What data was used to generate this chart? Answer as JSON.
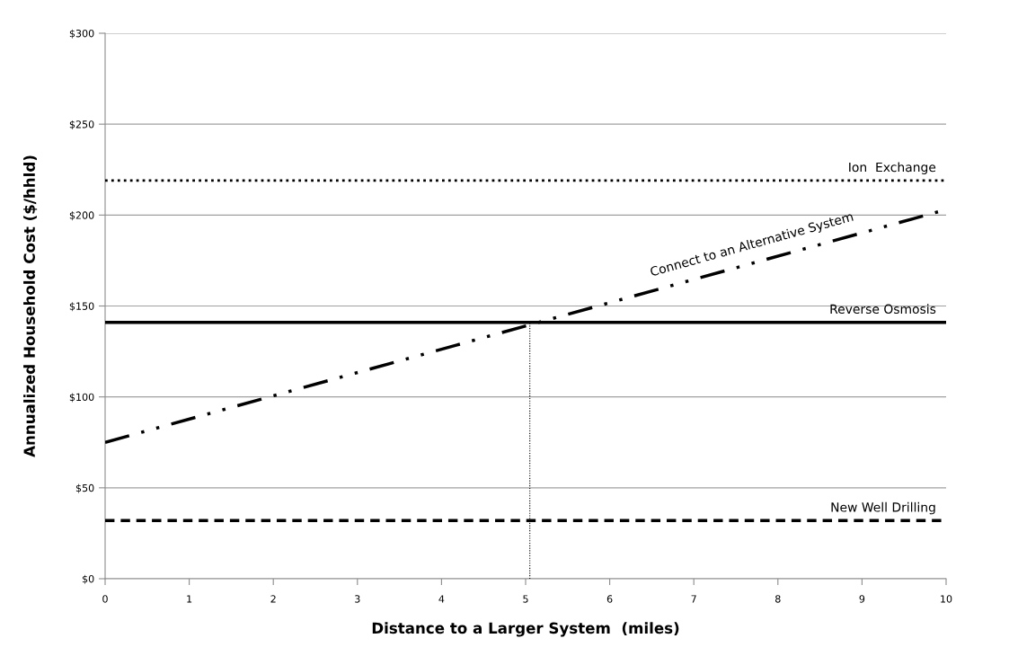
{
  "chart_data": {
    "type": "line",
    "xlabel": "Distance to a Larger System  (miles)",
    "ylabel": "Annualized Household Cost ($/hhld)",
    "xlim": [
      0,
      10
    ],
    "xticks": [
      0,
      1,
      2,
      3,
      4,
      5,
      6,
      7,
      8,
      9,
      10
    ],
    "ylim": [
      0,
      300
    ],
    "yticks": [
      {
        "value": 0,
        "label": "$0"
      },
      {
        "value": 50,
        "label": "$50"
      },
      {
        "value": 100,
        "label": "$100"
      },
      {
        "value": 150,
        "label": "$150"
      },
      {
        "value": 200,
        "label": "$200"
      },
      {
        "value": 250,
        "label": "$250"
      },
      {
        "value": 300,
        "label": "$300"
      }
    ],
    "grid": "y",
    "marker": "none",
    "series": [
      {
        "name": "Ion  Exchange",
        "color": "#000000",
        "line_style": "dotted",
        "x": [
          0,
          10
        ],
        "values": [
          219,
          219
        ]
      },
      {
        "name": "Connect to an Alternative System",
        "color": "#000000",
        "line_style": "dashdotdot",
        "x": [
          0,
          10
        ],
        "values": [
          75,
          203
        ]
      },
      {
        "name": "Reverse Osmosis",
        "color": "#000000",
        "line_style": "solid",
        "x": [
          0,
          10
        ],
        "values": [
          141,
          141
        ]
      },
      {
        "name": "New Well Drilling",
        "color": "#000000",
        "line_style": "dashed",
        "x": [
          0,
          10
        ],
        "values": [
          32,
          32
        ]
      },
      {
        "color": "#000000",
        "line_style": "dotted",
        "x": [
          5.05,
          5.05
        ],
        "values": [
          0,
          141
        ]
      }
    ]
  }
}
